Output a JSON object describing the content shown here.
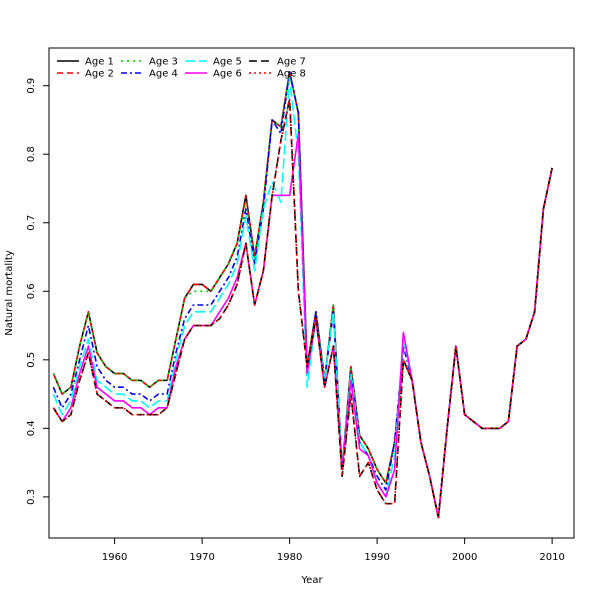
{
  "chart_data": {
    "type": "line",
    "xlabel": "Year",
    "ylabel": "Natural mortality",
    "xlim": [
      1952.5,
      2012.5
    ],
    "ylim": [
      0.24,
      0.955
    ],
    "x_ticks": [
      1960,
      1970,
      1980,
      1990,
      2000,
      2010
    ],
    "y_ticks": [
      0.3,
      0.4,
      0.5,
      0.6,
      0.7,
      0.8,
      0.9
    ],
    "x_tick_labels": [
      "1960",
      "1970",
      "1980",
      "1990",
      "2000",
      "2010"
    ],
    "y_tick_labels": [
      "0.3",
      "0.4",
      "0.5",
      "0.6",
      "0.7",
      "0.8",
      "0.9"
    ],
    "grid": false,
    "legend_position": "top-left",
    "years": [
      1953,
      1954,
      1955,
      1956,
      1957,
      1958,
      1959,
      1960,
      1961,
      1962,
      1963,
      1964,
      1965,
      1966,
      1967,
      1968,
      1969,
      1970,
      1971,
      1972,
      1973,
      1974,
      1975,
      1976,
      1977,
      1978,
      1979,
      1980,
      1981,
      1982,
      1983,
      1984,
      1985,
      1986,
      1987,
      1988,
      1989,
      1990,
      1991,
      1992,
      1993,
      1994,
      1995,
      1996,
      1997,
      1998,
      1999,
      2000,
      2001,
      2002,
      2003,
      2004,
      2005,
      2006,
      2007,
      2008,
      2009,
      2010
    ],
    "series": [
      {
        "name": "Age 1",
        "color": "#000000",
        "dash": "none",
        "values": [
          0.48,
          0.45,
          0.46,
          0.52,
          0.57,
          0.51,
          0.49,
          0.48,
          0.48,
          0.47,
          0.47,
          0.46,
          0.47,
          0.47,
          0.53,
          0.59,
          0.61,
          0.61,
          0.6,
          0.62,
          0.64,
          0.67,
          0.74,
          0.65,
          0.73,
          0.85,
          0.84,
          0.92,
          0.86,
          0.49,
          0.57,
          0.47,
          0.58,
          0.34,
          0.49,
          0.39,
          0.37,
          0.34,
          0.32,
          0.38,
          0.5,
          0.47,
          0.38,
          0.33,
          0.27,
          0.4,
          0.52,
          0.42,
          0.41,
          0.4,
          0.4,
          0.4,
          0.41,
          0.52,
          0.53,
          0.57,
          0.72,
          0.78
        ]
      },
      {
        "name": "Age 2",
        "color": "#FF0000",
        "dash": "6,4",
        "values": [
          0.48,
          0.45,
          0.46,
          0.52,
          0.57,
          0.51,
          0.49,
          0.48,
          0.48,
          0.47,
          0.47,
          0.46,
          0.47,
          0.47,
          0.53,
          0.59,
          0.61,
          0.61,
          0.6,
          0.62,
          0.64,
          0.67,
          0.74,
          0.65,
          0.73,
          0.85,
          0.84,
          0.92,
          0.86,
          0.49,
          0.57,
          0.47,
          0.58,
          0.34,
          0.49,
          0.39,
          0.37,
          0.34,
          0.32,
          0.38,
          0.5,
          0.47,
          0.38,
          0.33,
          0.27,
          0.4,
          0.52,
          0.42,
          0.41,
          0.4,
          0.4,
          0.4,
          0.41,
          0.52,
          0.53,
          0.57,
          0.72,
          0.78
        ]
      },
      {
        "name": "Age 3",
        "color": "#00CD00",
        "dash": "2,4",
        "values": [
          0.48,
          0.45,
          0.46,
          0.52,
          0.57,
          0.51,
          0.49,
          0.48,
          0.48,
          0.47,
          0.47,
          0.46,
          0.47,
          0.47,
          0.53,
          0.59,
          0.6,
          0.6,
          0.6,
          0.62,
          0.64,
          0.67,
          0.73,
          0.65,
          0.73,
          0.85,
          0.84,
          0.92,
          0.86,
          0.49,
          0.57,
          0.47,
          0.58,
          0.34,
          0.49,
          0.39,
          0.37,
          0.34,
          0.32,
          0.38,
          0.5,
          0.47,
          0.38,
          0.33,
          0.27,
          0.4,
          0.52,
          0.42,
          0.41,
          0.4,
          0.4,
          0.4,
          0.41,
          0.52,
          0.53,
          0.57,
          0.72,
          0.78
        ]
      },
      {
        "name": "Age 4",
        "color": "#0000FF",
        "dash": "6,3,2,3",
        "values": [
          0.46,
          0.43,
          0.45,
          0.5,
          0.55,
          0.49,
          0.47,
          0.46,
          0.46,
          0.45,
          0.45,
          0.44,
          0.45,
          0.45,
          0.51,
          0.56,
          0.58,
          0.58,
          0.58,
          0.6,
          0.62,
          0.65,
          0.72,
          0.64,
          0.72,
          0.85,
          0.83,
          0.92,
          0.86,
          0.48,
          0.57,
          0.47,
          0.57,
          0.34,
          0.48,
          0.38,
          0.36,
          0.33,
          0.31,
          0.38,
          0.52,
          0.47,
          0.38,
          0.33,
          0.27,
          0.4,
          0.52,
          0.42,
          0.41,
          0.4,
          0.4,
          0.4,
          0.41,
          0.52,
          0.53,
          0.57,
          0.72,
          0.78
        ]
      },
      {
        "name": "Age 5",
        "color": "#00FFFF",
        "dash": "10,4",
        "values": [
          0.45,
          0.42,
          0.44,
          0.49,
          0.53,
          0.47,
          0.46,
          0.45,
          0.45,
          0.44,
          0.44,
          0.43,
          0.44,
          0.44,
          0.5,
          0.55,
          0.57,
          0.57,
          0.57,
          0.59,
          0.61,
          0.64,
          0.71,
          0.63,
          0.72,
          0.76,
          0.73,
          0.91,
          0.8,
          0.46,
          0.56,
          0.47,
          0.57,
          0.34,
          0.48,
          0.38,
          0.36,
          0.32,
          0.3,
          0.36,
          0.53,
          0.47,
          0.38,
          0.33,
          0.27,
          0.4,
          0.52,
          0.42,
          0.41,
          0.4,
          0.4,
          0.4,
          0.41,
          0.52,
          0.53,
          0.57,
          0.72,
          0.78
        ]
      },
      {
        "name": "Age 6",
        "color": "#FF00FF",
        "dash": "none",
        "values": [
          0.43,
          0.41,
          0.43,
          0.48,
          0.52,
          0.46,
          0.45,
          0.44,
          0.44,
          0.43,
          0.43,
          0.42,
          0.43,
          0.43,
          0.49,
          0.53,
          0.55,
          0.55,
          0.55,
          0.57,
          0.59,
          0.62,
          0.67,
          0.58,
          0.63,
          0.74,
          0.74,
          0.74,
          0.83,
          0.48,
          0.56,
          0.46,
          0.52,
          0.34,
          0.47,
          0.37,
          0.36,
          0.32,
          0.3,
          0.34,
          0.54,
          0.47,
          0.38,
          0.33,
          0.27,
          0.4,
          0.52,
          0.42,
          0.41,
          0.4,
          0.4,
          0.4,
          0.41,
          0.52,
          0.53,
          0.57,
          0.72,
          0.78
        ]
      },
      {
        "name": "Age 7",
        "color": "#000000",
        "dash": "8,4",
        "values": [
          0.43,
          0.41,
          0.42,
          0.47,
          0.51,
          0.45,
          0.44,
          0.43,
          0.43,
          0.42,
          0.42,
          0.42,
          0.42,
          0.43,
          0.48,
          0.53,
          0.55,
          0.55,
          0.55,
          0.56,
          0.58,
          0.61,
          0.67,
          0.58,
          0.63,
          0.74,
          0.82,
          0.88,
          0.6,
          0.49,
          0.56,
          0.46,
          0.52,
          0.33,
          0.45,
          0.33,
          0.35,
          0.31,
          0.29,
          0.29,
          0.5,
          0.47,
          0.38,
          0.33,
          0.27,
          0.4,
          0.52,
          0.42,
          0.41,
          0.4,
          0.4,
          0.4,
          0.41,
          0.52,
          0.53,
          0.57,
          0.72,
          0.78
        ]
      },
      {
        "name": "Age 8",
        "color": "#FF0000",
        "dash": "2,3",
        "values": [
          0.43,
          0.41,
          0.42,
          0.47,
          0.51,
          0.45,
          0.44,
          0.43,
          0.43,
          0.42,
          0.42,
          0.42,
          0.42,
          0.43,
          0.48,
          0.53,
          0.55,
          0.55,
          0.55,
          0.56,
          0.58,
          0.61,
          0.67,
          0.58,
          0.63,
          0.74,
          0.82,
          0.88,
          0.6,
          0.49,
          0.56,
          0.46,
          0.52,
          0.33,
          0.45,
          0.33,
          0.35,
          0.31,
          0.29,
          0.29,
          0.5,
          0.47,
          0.38,
          0.33,
          0.27,
          0.4,
          0.52,
          0.42,
          0.41,
          0.4,
          0.4,
          0.4,
          0.41,
          0.52,
          0.53,
          0.57,
          0.72,
          0.78
        ]
      }
    ]
  }
}
